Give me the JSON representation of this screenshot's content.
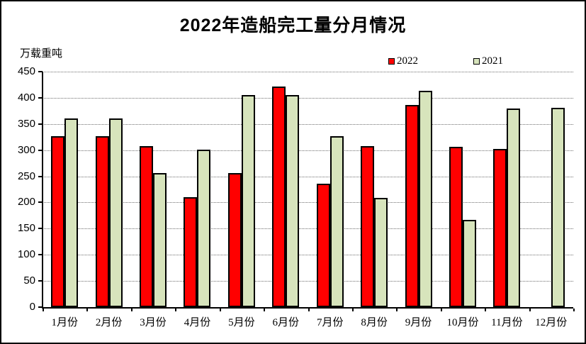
{
  "title": "2022年造船完工量分月情况",
  "y_axis_unit": "万载重吨",
  "legend": [
    {
      "label": "2022",
      "color": "#ff0000"
    },
    {
      "label": "2021",
      "color": "#d7e4bc"
    }
  ],
  "chart_data": {
    "type": "bar",
    "title": "2022年造船完工量分月情况",
    "ylabel": "万载重吨",
    "xlabel": "",
    "categories": [
      "1月份",
      "2月份",
      "3月份",
      "4月份",
      "5月份",
      "6月份",
      "7月份",
      "8月份",
      "9月份",
      "10月份",
      "11月份",
      "12月份"
    ],
    "series": [
      {
        "name": "2022",
        "color": "#ff0000",
        "values": [
          326,
          326,
          308,
          210,
          256,
          421,
          236,
          308,
          386,
          307,
          302,
          null
        ]
      },
      {
        "name": "2021",
        "color": "#d7e4bc",
        "values": [
          361,
          361,
          256,
          301,
          405,
          405,
          326,
          209,
          414,
          167,
          380,
          381
        ]
      }
    ],
    "ylim": [
      0,
      450
    ],
    "ytick_step": 50,
    "grid": true,
    "legend_position": "top-right"
  }
}
